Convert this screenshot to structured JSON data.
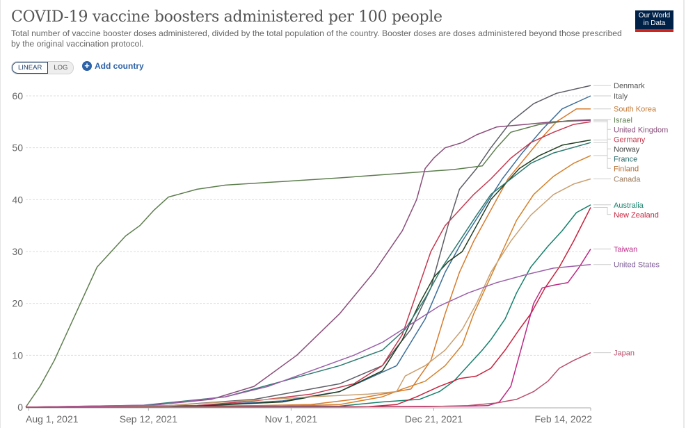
{
  "header": {
    "title": "COVID-19 vaccine boosters administered per 100 people",
    "subtitle": "Total number of vaccine booster doses administered, divided by the total population of the country. Booster doses are doses administered beyond those prescribed by the original vaccination protocol.",
    "logo_line1": "Our World",
    "logo_line2": "in Data"
  },
  "controls": {
    "scale_options": [
      "LINEAR",
      "LOG"
    ],
    "scale_selected": "LINEAR",
    "add_country_label": "Add country",
    "add_icon": "plus-circle-icon"
  },
  "colors": {
    "logo_bg": "#002147",
    "logo_accent": "#ce261e",
    "link": "#2c62a7"
  },
  "chart_data": {
    "type": "line",
    "title": "COVID-19 vaccine boosters administered per 100 people",
    "xlabel": "",
    "ylabel": "",
    "ylim": [
      0,
      62
    ],
    "xlim": [
      "2021-07-31",
      "2022-02-14"
    ],
    "grid": true,
    "legend_placement": "right",
    "y_ticks": [
      0,
      10,
      20,
      30,
      40,
      50,
      60
    ],
    "x_ticks": [
      {
        "label": "Aug 1, 2021",
        "day": 1
      },
      {
        "label": "Sep 12, 2021",
        "day": 43
      },
      {
        "label": "Nov 1, 2021",
        "day": 93
      },
      {
        "label": "Dec 21, 2021",
        "day": 143
      },
      {
        "label": "Feb 14, 2022",
        "day": 198
      }
    ],
    "x_unit": "days since Jul 31, 2021",
    "series": [
      {
        "name": "Denmark",
        "color": "#5c5c66",
        "label_color": "#555555",
        "points": [
          [
            0,
            0
          ],
          [
            50,
            0.3
          ],
          [
            80,
            1.5
          ],
          [
            110,
            4.5
          ],
          [
            125,
            8
          ],
          [
            135,
            15
          ],
          [
            142,
            23
          ],
          [
            148,
            35
          ],
          [
            152,
            42
          ],
          [
            158,
            46
          ],
          [
            163,
            50
          ],
          [
            170,
            55
          ],
          [
            178,
            58.5
          ],
          [
            186,
            60.5
          ],
          [
            198,
            62
          ]
        ]
      },
      {
        "name": "Italy",
        "color": "#3c6e99",
        "label_color": "#555555",
        "points": [
          [
            0,
            0
          ],
          [
            60,
            0.3
          ],
          [
            90,
            1.2
          ],
          [
            110,
            3
          ],
          [
            130,
            8
          ],
          [
            140,
            17
          ],
          [
            147,
            26
          ],
          [
            153,
            32
          ],
          [
            160,
            38
          ],
          [
            167,
            44
          ],
          [
            174,
            49
          ],
          [
            181,
            53.5
          ],
          [
            188,
            57.5
          ],
          [
            198,
            60
          ]
        ]
      },
      {
        "name": "South Korea",
        "color": "#d67a2c",
        "label_color": "#c47a36",
        "points": [
          [
            0,
            0
          ],
          [
            80,
            0.3
          ],
          [
            100,
            0.5
          ],
          [
            115,
            1.5
          ],
          [
            125,
            2.5
          ],
          [
            135,
            3.5
          ],
          [
            142,
            9
          ],
          [
            147,
            18
          ],
          [
            152,
            26
          ],
          [
            157,
            32
          ],
          [
            163,
            38
          ],
          [
            169,
            44
          ],
          [
            175,
            48
          ],
          [
            181,
            52
          ],
          [
            186,
            55
          ],
          [
            193,
            57.5
          ],
          [
            198,
            57.5
          ]
        ]
      },
      {
        "name": "Israel",
        "color": "#5d7e4e",
        "label_color": "#5d7e4e",
        "points": [
          [
            0,
            0
          ],
          [
            5,
            4
          ],
          [
            10,
            9
          ],
          [
            15,
            15
          ],
          [
            20,
            21
          ],
          [
            25,
            27
          ],
          [
            30,
            30
          ],
          [
            35,
            33
          ],
          [
            40,
            35
          ],
          [
            45,
            38
          ],
          [
            50,
            40.5
          ],
          [
            60,
            42
          ],
          [
            70,
            42.8
          ],
          [
            90,
            43.5
          ],
          [
            110,
            44.2
          ],
          [
            130,
            45
          ],
          [
            150,
            45.8
          ],
          [
            160,
            46.5
          ],
          [
            165,
            50
          ],
          [
            170,
            53
          ],
          [
            180,
            54.5
          ],
          [
            190,
            55.2
          ],
          [
            198,
            55.4
          ]
        ]
      },
      {
        "name": "United Kingdom",
        "color": "#8a4d7b",
        "label_color": "#8a4d7b",
        "points": [
          [
            0,
            0
          ],
          [
            45,
            0.4
          ],
          [
            65,
            1.5
          ],
          [
            80,
            4
          ],
          [
            95,
            10
          ],
          [
            110,
            18
          ],
          [
            122,
            26
          ],
          [
            132,
            34
          ],
          [
            137,
            40
          ],
          [
            140,
            46
          ],
          [
            143,
            48
          ],
          [
            147,
            50
          ],
          [
            153,
            51
          ],
          [
            158,
            52.5
          ],
          [
            165,
            54
          ],
          [
            175,
            54.5
          ],
          [
            185,
            55
          ],
          [
            198,
            55.3
          ]
        ]
      },
      {
        "name": "Germany",
        "color": "#c4384f",
        "label_color": "#c4384f",
        "points": [
          [
            0,
            0
          ],
          [
            60,
            0.3
          ],
          [
            80,
            1.2
          ],
          [
            100,
            2.5
          ],
          [
            115,
            4.5
          ],
          [
            125,
            8
          ],
          [
            132,
            14
          ],
          [
            137,
            22
          ],
          [
            142,
            30
          ],
          [
            147,
            35
          ],
          [
            152,
            38
          ],
          [
            157,
            41
          ],
          [
            163,
            44
          ],
          [
            170,
            48
          ],
          [
            177,
            51
          ],
          [
            185,
            53
          ],
          [
            192,
            54.5
          ],
          [
            198,
            55
          ]
        ]
      },
      {
        "name": "Norway",
        "color": "#1f3d1f",
        "label_color": "#444444",
        "points": [
          [
            0,
            0
          ],
          [
            60,
            0.2
          ],
          [
            90,
            1
          ],
          [
            110,
            3
          ],
          [
            125,
            7
          ],
          [
            132,
            13
          ],
          [
            138,
            20
          ],
          [
            143,
            25
          ],
          [
            148,
            28
          ],
          [
            153,
            30
          ],
          [
            158,
            35
          ],
          [
            163,
            40
          ],
          [
            168,
            43
          ],
          [
            173,
            46
          ],
          [
            180,
            48.5
          ],
          [
            188,
            50.5
          ],
          [
            198,
            51.5
          ]
        ]
      },
      {
        "name": "France",
        "color": "#2c7a6f",
        "label_color": "#2c6a6a",
        "points": [
          [
            0,
            0
          ],
          [
            40,
            0.3
          ],
          [
            70,
            2
          ],
          [
            90,
            5
          ],
          [
            110,
            8
          ],
          [
            125,
            11
          ],
          [
            133,
            15
          ],
          [
            140,
            21
          ],
          [
            146,
            27
          ],
          [
            152,
            32
          ],
          [
            158,
            37
          ],
          [
            163,
            41
          ],
          [
            170,
            44
          ],
          [
            177,
            47
          ],
          [
            185,
            49
          ],
          [
            198,
            51
          ]
        ]
      },
      {
        "name": "Finland",
        "color": "#d4812a",
        "label_color": "#b36b2d",
        "points": [
          [
            0,
            0
          ],
          [
            90,
            0.2
          ],
          [
            110,
            0.5
          ],
          [
            125,
            2
          ],
          [
            132,
            3.5
          ],
          [
            140,
            5
          ],
          [
            147,
            8
          ],
          [
            153,
            12
          ],
          [
            157,
            18
          ],
          [
            162,
            24
          ],
          [
            167,
            30
          ],
          [
            172,
            36
          ],
          [
            178,
            41
          ],
          [
            185,
            44.5
          ],
          [
            192,
            47
          ],
          [
            198,
            48.5
          ]
        ]
      },
      {
        "name": "Canada",
        "color": "#c9a070",
        "label_color": "#9a7a5c",
        "points": [
          [
            0,
            0
          ],
          [
            50,
            0.3
          ],
          [
            70,
            1
          ],
          [
            100,
            2
          ],
          [
            120,
            2.5
          ],
          [
            130,
            3
          ],
          [
            133,
            6
          ],
          [
            140,
            8
          ],
          [
            147,
            11
          ],
          [
            153,
            15
          ],
          [
            158,
            20
          ],
          [
            163,
            26
          ],
          [
            170,
            32
          ],
          [
            177,
            37
          ],
          [
            185,
            41
          ],
          [
            192,
            43
          ],
          [
            198,
            44
          ]
        ]
      },
      {
        "name": "Australia",
        "color": "#14806b",
        "label_color": "#14806b",
        "points": [
          [
            0,
            0
          ],
          [
            110,
            0.2
          ],
          [
            125,
            1
          ],
          [
            138,
            1.5
          ],
          [
            145,
            3
          ],
          [
            150,
            5
          ],
          [
            155,
            8
          ],
          [
            160,
            11
          ],
          [
            163,
            13
          ],
          [
            168,
            17
          ],
          [
            172,
            22
          ],
          [
            177,
            27
          ],
          [
            183,
            31
          ],
          [
            188,
            34
          ],
          [
            193,
            37.5
          ],
          [
            198,
            39
          ]
        ]
      },
      {
        "name": "New Zealand",
        "color": "#c7223d",
        "label_color": "#c7223d",
        "points": [
          [
            0,
            0
          ],
          [
            120,
            0.1
          ],
          [
            130,
            0.5
          ],
          [
            137,
            2
          ],
          [
            145,
            4
          ],
          [
            152,
            5.5
          ],
          [
            158,
            6
          ],
          [
            163,
            7.5
          ],
          [
            168,
            11
          ],
          [
            173,
            15
          ],
          [
            177,
            18
          ],
          [
            182,
            23
          ],
          [
            187,
            27
          ],
          [
            192,
            32
          ],
          [
            198,
            38.5
          ]
        ]
      },
      {
        "name": "Taiwan",
        "color": "#bb2784",
        "label_color": "#bb2784",
        "points": [
          [
            0,
            0
          ],
          [
            120,
            0.1
          ],
          [
            155,
            0.2
          ],
          [
            162,
            0.3
          ],
          [
            166,
            1
          ],
          [
            170,
            4
          ],
          [
            174,
            12
          ],
          [
            178,
            20
          ],
          [
            181,
            23
          ],
          [
            185,
            23.5
          ],
          [
            190,
            24
          ],
          [
            194,
            27
          ],
          [
            198,
            30.5
          ]
        ]
      },
      {
        "name": "United States",
        "color": "#9a5fa8",
        "label_color": "#7b5a95",
        "points": [
          [
            0,
            0
          ],
          [
            45,
            0.4
          ],
          [
            70,
            2
          ],
          [
            85,
            4
          ],
          [
            100,
            7
          ],
          [
            115,
            10
          ],
          [
            125,
            12.5
          ],
          [
            135,
            16
          ],
          [
            145,
            19.5
          ],
          [
            155,
            22
          ],
          [
            165,
            24
          ],
          [
            175,
            25.5
          ],
          [
            185,
            26.8
          ],
          [
            198,
            27.5
          ]
        ]
      },
      {
        "name": "Japan",
        "color": "#b94e6b",
        "label_color": "#b94e6b",
        "points": [
          [
            0,
            0
          ],
          [
            140,
            0.1
          ],
          [
            155,
            0.3
          ],
          [
            165,
            0.8
          ],
          [
            172,
            1.5
          ],
          [
            178,
            3
          ],
          [
            183,
            5
          ],
          [
            187,
            7.5
          ],
          [
            192,
            9
          ],
          [
            198,
            10.5
          ]
        ]
      }
    ],
    "legend_order": [
      "Denmark",
      "Italy",
      "South Korea",
      "Israel",
      "United Kingdom",
      "Germany",
      "Norway",
      "France",
      "Finland",
      "Canada",
      "Australia",
      "New Zealand",
      "Taiwan",
      "United States",
      "Japan"
    ]
  }
}
